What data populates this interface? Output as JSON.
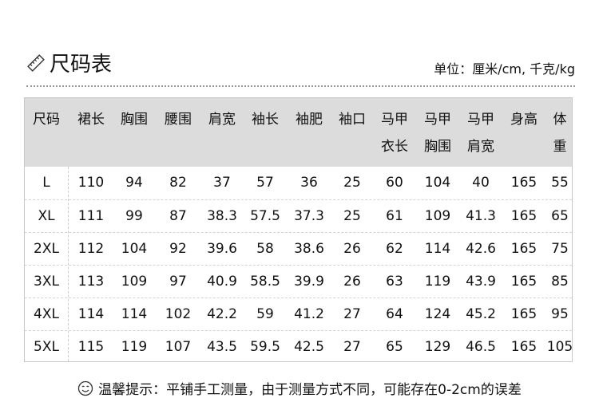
{
  "title": "尺码表",
  "unit": "单位：厘米/cm, 千克/kg",
  "table": {
    "headers": [
      [
        "尺码"
      ],
      [
        "裙长"
      ],
      [
        "胸围"
      ],
      [
        "腰围"
      ],
      [
        "肩宽"
      ],
      [
        "袖长"
      ],
      [
        "袖肥"
      ],
      [
        "袖口"
      ],
      [
        "马甲",
        "衣长"
      ],
      [
        "马甲",
        "胸围"
      ],
      [
        "马甲",
        "肩宽"
      ],
      [
        "身高"
      ],
      [
        "体",
        "重"
      ]
    ],
    "rows": [
      [
        "L",
        "110",
        "94",
        "82",
        "37",
        "57",
        "36",
        "25",
        "60",
        "104",
        "40",
        "165",
        "55"
      ],
      [
        "XL",
        "111",
        "99",
        "87",
        "38.3",
        "57.5",
        "37.3",
        "25",
        "61",
        "109",
        "41.3",
        "165",
        "65"
      ],
      [
        "2XL",
        "112",
        "104",
        "92",
        "39.6",
        "58",
        "38.6",
        "26",
        "62",
        "114",
        "42.6",
        "165",
        "75"
      ],
      [
        "3XL",
        "113",
        "109",
        "97",
        "40.9",
        "58.5",
        "39.9",
        "26",
        "63",
        "119",
        "43.9",
        "165",
        "85"
      ],
      [
        "4XL",
        "114",
        "114",
        "102",
        "42.2",
        "59",
        "41.2",
        "27",
        "64",
        "124",
        "45.2",
        "165",
        "95"
      ],
      [
        "5XL",
        "115",
        "119",
        "107",
        "43.5",
        "59.5",
        "42.5",
        "27",
        "65",
        "129",
        "46.5",
        "165",
        "105"
      ]
    ]
  },
  "tip": "温馨提示：平铺手工测量，由于测量方式不同，可能存在0-2cm的误差",
  "icons": {
    "title": "ruler-icon",
    "tip": "smile-icon"
  },
  "colors": {
    "header_bg": "#dcdcdc",
    "border": "#c8c8c8"
  }
}
